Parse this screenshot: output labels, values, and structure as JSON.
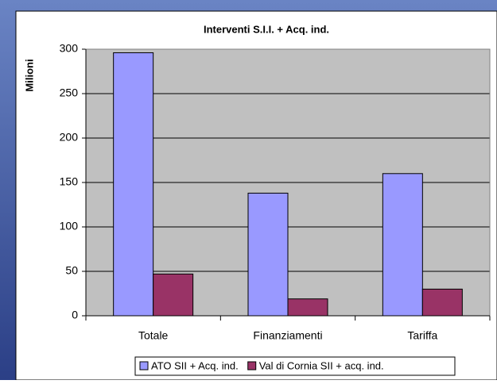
{
  "chart_data": {
    "type": "bar",
    "title": "Interventi S.I.I. + Acq. ind.",
    "y_label": "Milioni",
    "categories": [
      "Totale",
      "Finanziamenti",
      "Tariffa"
    ],
    "series": [
      {
        "name": "ATO SII + Acq. ind.",
        "color": "#9999ff",
        "values": [
          296,
          138,
          160
        ]
      },
      {
        "name": "Val di Cornia SII + acq. ind.",
        "color": "#993366",
        "values": [
          47,
          19,
          30
        ]
      }
    ],
    "ylim": [
      0,
      300
    ],
    "yticks": [
      0,
      50,
      100,
      150,
      200,
      250,
      300
    ],
    "grid": true,
    "legend": "bottom"
  }
}
